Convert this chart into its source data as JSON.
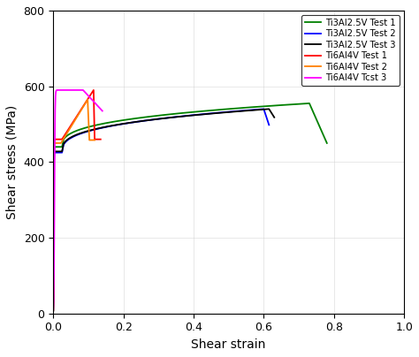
{
  "title": "",
  "xlabel": "Shear strain",
  "ylabel": "Shear stress (MPa)",
  "xlim": [
    0,
    1.0
  ],
  "ylim": [
    0,
    800
  ],
  "xticks": [
    0,
    0.2,
    0.4,
    0.6,
    0.8,
    1.0
  ],
  "yticks": [
    0,
    200,
    400,
    600,
    800
  ],
  "legend_labels": [
    "Ti3Al2.5V Test 1",
    "Ti3Al2.5V Test 2",
    "Ti3Al2.5V Test 3",
    "Ti6Al4V Test 1",
    "Ti6Al4V Test 2",
    "Ti6Al4V Tcst 3"
  ],
  "legend_colors": [
    "#008000",
    "#0000FF",
    "#000000",
    "#FF0000",
    "#FF8000",
    "#FF00FF"
  ],
  "background_color": "#ffffff",
  "grid_color": "#d0d0d0"
}
